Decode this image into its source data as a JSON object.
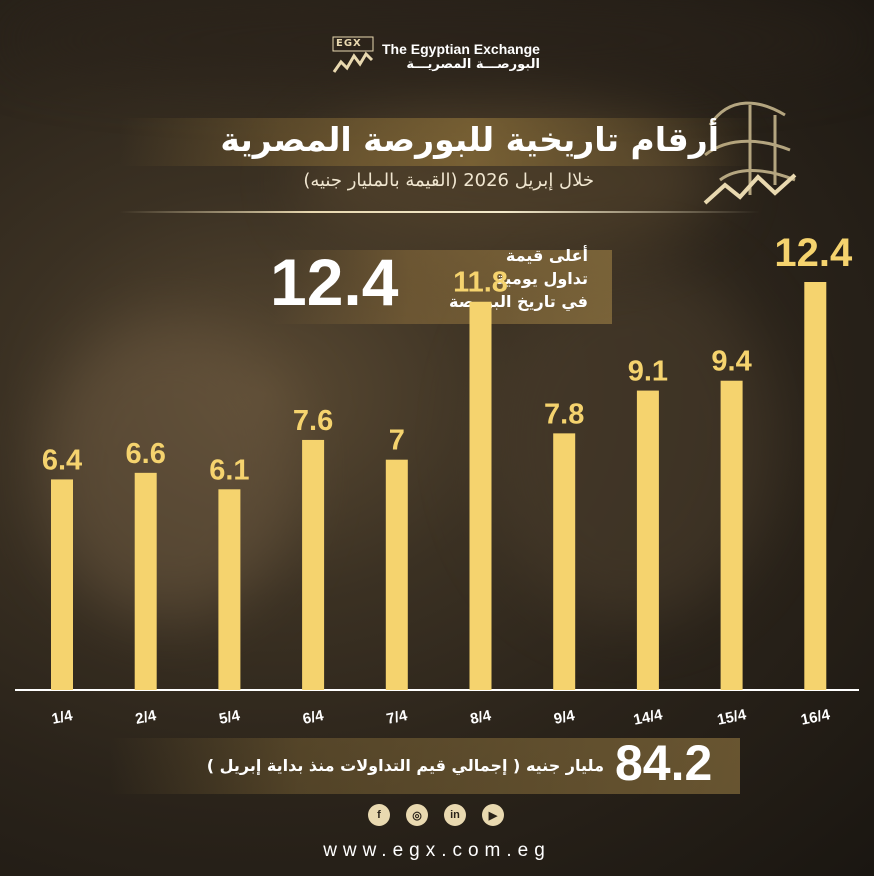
{
  "logo": {
    "mark": "EGX",
    "name_en": "The Egyptian Exchange",
    "name_ar": "البورصـــة المصريـــة"
  },
  "header": {
    "title": "أرقام تاريخية للبورصة المصرية",
    "subtitle": "خلال إبريل 2026 (القيمة بالمليار جنيه)"
  },
  "highlight": {
    "value": "12.4",
    "label_lines": [
      "أعلى قيمة",
      "تداول يومية",
      "في تاريخ البورصة"
    ]
  },
  "chart_data": {
    "type": "bar",
    "categories": [
      "1/4",
      "2/4",
      "5/4",
      "6/4",
      "7/4",
      "8/4",
      "9/4",
      "14/4",
      "15/4",
      "16/4"
    ],
    "values": [
      6.4,
      6.6,
      6.1,
      7.6,
      7,
      11.8,
      7.8,
      9.1,
      9.4,
      12.4
    ],
    "value_labels": [
      "6.4",
      "6.6",
      "6.1",
      "7.6",
      "7",
      "11.8",
      "7.8",
      "9.1",
      "9.4",
      "12.4"
    ],
    "title": "",
    "xlabel": "",
    "ylabel": "",
    "ylim": [
      0,
      12.4
    ],
    "grid": false,
    "bar_color": "#f5d36e"
  },
  "total": {
    "value": "84.2",
    "label": "مليار جنيه ( إجمالي قيم التداولات منذ بداية إبريل )"
  },
  "socials": [
    {
      "name": "facebook-icon",
      "glyph": "f"
    },
    {
      "name": "instagram-icon",
      "glyph": "◎"
    },
    {
      "name": "linkedin-icon",
      "glyph": "in"
    },
    {
      "name": "youtube-icon",
      "glyph": "▶"
    }
  ],
  "website": "www.egx.com.eg",
  "colors": {
    "accent": "#f5d36e",
    "gold": "#e9d9b0"
  }
}
